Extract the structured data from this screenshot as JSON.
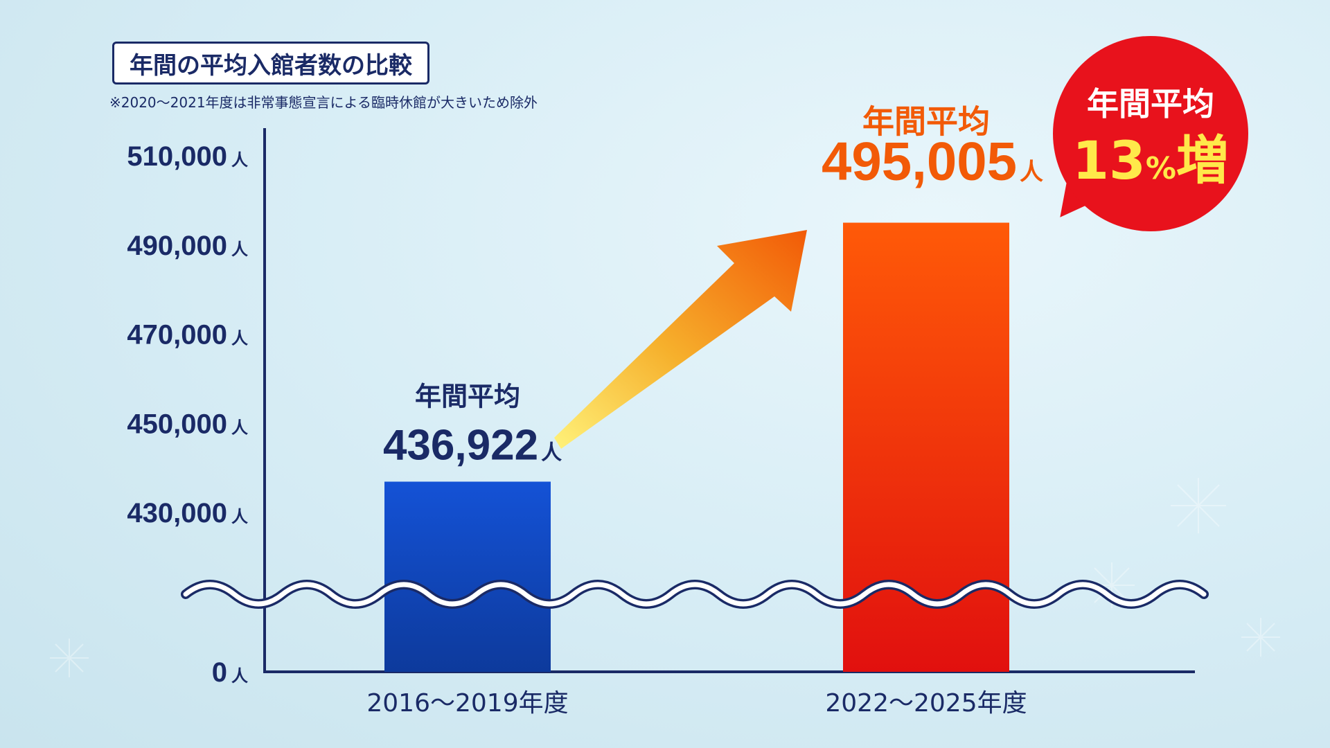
{
  "title": "年間の平均入館者数の比較",
  "note": "※2020〜2021年度は非常事態宣言による臨時休館が大きいため除外",
  "unit": "人",
  "badge": {
    "line1": "年間平均",
    "value": "13",
    "percent_sign": "%",
    "suffix": "増"
  },
  "chart_data": {
    "type": "bar",
    "title": "年間の平均入館者数の比較",
    "xlabel": "",
    "ylabel": "",
    "axis_break": true,
    "y_ticks": [
      {
        "value": 0,
        "label": "0"
      },
      {
        "value": 430000,
        "label": "430,000"
      },
      {
        "value": 450000,
        "label": "450,000"
      },
      {
        "value": 470000,
        "label": "470,000"
      },
      {
        "value": 490000,
        "label": "490,000"
      },
      {
        "value": 510000,
        "label": "510,000"
      }
    ],
    "y_unit": "人",
    "categories": [
      "2016〜2019年度",
      "2022〜2025年度"
    ],
    "values": [
      436922,
      495005
    ],
    "value_labels": [
      "436,922",
      "495,005"
    ],
    "value_caption": "年間平均",
    "colors": [
      "#1447c8",
      "#ef2a10"
    ],
    "growth_percent": 13
  }
}
